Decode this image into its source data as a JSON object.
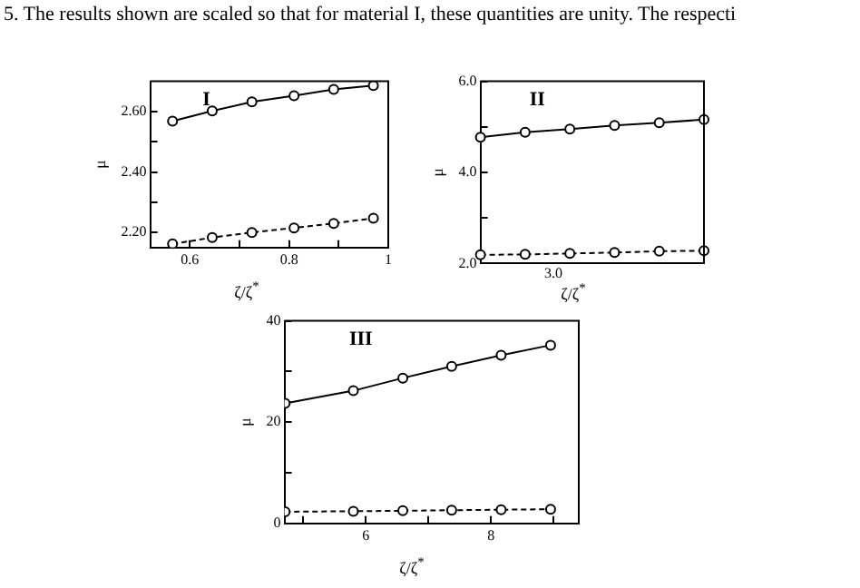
{
  "chart_data": [
    {
      "type": "line",
      "title": "I",
      "xlabel": "ζ/ζ$^{*}$",
      "ylabel": "μ",
      "annotations": [
        "5. The results shown are scaled so that for material I, these quantities are unity. The respecti"
      ],
      "xlim": [
        0.52,
        1.0
      ],
      "xticks": [
        {
          "value": 0.6,
          "label": "0.6"
        },
        {
          "value": 0.7,
          "label": null
        },
        {
          "value": 0.8,
          "label": "0.8"
        },
        {
          "value": 0.9,
          "label": null
        },
        {
          "value": 1,
          "label": "1"
        }
      ],
      "ylim": [
        2.15,
        2.7
      ],
      "yticks": [
        {
          "value": 2.2,
          "label": "2.20"
        },
        {
          "value": 2.3,
          "label": null
        },
        {
          "value": 2.4,
          "label": "2.40"
        },
        {
          "value": 2.5,
          "label": null
        },
        {
          "value": 2.6,
          "label": "2.60"
        }
      ],
      "grid": false,
      "legend": false,
      "marker": "circle",
      "series": [
        {
          "color": "#000000",
          "line_style": "solid",
          "x": [
            0.565,
            0.645,
            0.725,
            0.81,
            0.89,
            0.97
          ],
          "values": [
            2.568,
            2.602,
            2.632,
            2.652,
            2.673,
            2.686
          ]
        },
        {
          "color": "#000000",
          "line_style": "dashed",
          "x": [
            0.565,
            0.645,
            0.725,
            0.81,
            0.89,
            0.97
          ],
          "values": [
            2.162,
            2.183,
            2.2,
            2.215,
            2.23,
            2.247
          ]
        }
      ]
    },
    {
      "type": "line",
      "title": "II",
      "xlabel": "ζ/ζ$^{*}$",
      "ylabel": "μ",
      "annotations": [
        "3.0"
      ],
      "categories": [
        null,
        null,
        null,
        null,
        null,
        null
      ],
      "ylim": [
        2.0,
        6.0
      ],
      "yticks": [
        {
          "value": 2,
          "label": "2.0"
        },
        {
          "value": 3,
          "label": null
        },
        {
          "value": 4,
          "label": "4.0"
        },
        {
          "value": 5,
          "label": null
        },
        {
          "value": 6,
          "label": "6.0"
        }
      ],
      "grid": false,
      "legend": false,
      "marker": "circle",
      "series": [
        {
          "color": "#000000",
          "line_style": "solid",
          "values": [
            4.77,
            4.88,
            4.95,
            5.03,
            5.09,
            5.16
          ]
        },
        {
          "color": "#000000",
          "line_style": "dashed",
          "values": [
            2.19,
            2.2,
            2.22,
            2.24,
            2.27,
            2.28
          ]
        }
      ]
    },
    {
      "type": "line",
      "title": "III",
      "xlabel": "ζ/ζ$^{*}$",
      "ylabel": "μ",
      "xlim": [
        4.7,
        9.4
      ],
      "xticks": [
        {
          "value": 5,
          "label": null
        },
        {
          "value": 6,
          "label": "6"
        },
        {
          "value": 7,
          "label": null
        },
        {
          "value": 8,
          "label": "8"
        },
        {
          "value": 9,
          "label": null
        }
      ],
      "ylim": [
        0,
        40
      ],
      "yticks": [
        {
          "value": 0,
          "label": "0"
        },
        {
          "value": 10,
          "label": null
        },
        {
          "value": 20,
          "label": "20"
        },
        {
          "value": 30,
          "label": null
        },
        {
          "value": 40,
          "label": "40"
        }
      ],
      "grid": false,
      "legend": false,
      "marker": "circle",
      "series": [
        {
          "color": "#000000",
          "line_style": "solid",
          "x": [
            4.71,
            5.8,
            6.59,
            7.37,
            8.16,
            8.95
          ],
          "values": [
            23.7,
            26.2,
            28.7,
            31.0,
            33.2,
            35.2
          ]
        },
        {
          "color": "#000000",
          "line_style": "dashed",
          "x": [
            4.71,
            5.8,
            6.59,
            7.37,
            8.16,
            8.95
          ],
          "values": [
            2.3,
            2.4,
            2.5,
            2.6,
            2.7,
            2.8
          ]
        }
      ]
    }
  ]
}
